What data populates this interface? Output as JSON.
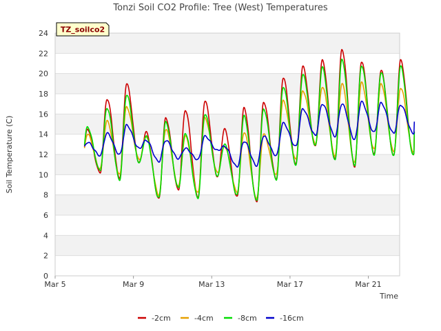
{
  "chart_data": {
    "type": "line",
    "title": "Tonzi Soil CO2 Profile: Tree (West) Temperatures",
    "xlabel": "Time",
    "ylabel": "Soil Temperature (C)",
    "badge": "TZ_soilco2",
    "xlim": [
      0,
      17.6
    ],
    "ylim": [
      0,
      24
    ],
    "yticks": [
      0,
      2,
      4,
      6,
      8,
      10,
      12,
      14,
      16,
      18,
      20,
      22,
      24
    ],
    "xticks": [
      {
        "value": 0,
        "label": "Mar 5"
      },
      {
        "value": 4,
        "label": "Mar 9"
      },
      {
        "value": 8,
        "label": "Mar 13"
      },
      {
        "value": 12,
        "label": "Mar 17"
      },
      {
        "value": 16,
        "label": "Mar 21"
      }
    ],
    "grid": true,
    "legend_position": "bottom",
    "series": [
      {
        "name": "-2cm",
        "color": "#cc0000",
        "daily": [
          {
            "min": 10.0,
            "max": 14.5
          },
          {
            "min": 10.2,
            "max": 17.5
          },
          {
            "min": 9.7,
            "max": 19.0
          },
          {
            "min": 11.2,
            "max": 14.2
          },
          {
            "min": 7.6,
            "max": 15.6
          },
          {
            "min": 8.5,
            "max": 16.4
          },
          {
            "min": 7.8,
            "max": 17.3
          },
          {
            "min": 9.8,
            "max": 14.5
          },
          {
            "min": 7.8,
            "max": 16.6
          },
          {
            "min": 7.3,
            "max": 17.2
          },
          {
            "min": 9.6,
            "max": 19.6
          },
          {
            "min": 11.1,
            "max": 20.7
          },
          {
            "min": 12.8,
            "max": 21.3
          },
          {
            "min": 11.5,
            "max": 22.4
          },
          {
            "min": 10.8,
            "max": 21.2
          },
          {
            "min": 12.1,
            "max": 20.3
          },
          {
            "min": 11.9,
            "max": 21.3
          }
        ],
        "end": 13.9
      },
      {
        "name": "-4cm",
        "color": "#e6a000",
        "daily": [
          {
            "min": 10.4,
            "max": 14.0
          },
          {
            "min": 10.6,
            "max": 15.3
          },
          {
            "min": 10.0,
            "max": 16.7
          },
          {
            "min": 11.5,
            "max": 13.8
          },
          {
            "min": 8.0,
            "max": 14.5
          },
          {
            "min": 8.9,
            "max": 13.8
          },
          {
            "min": 8.2,
            "max": 15.6
          },
          {
            "min": 10.2,
            "max": 12.8
          },
          {
            "min": 8.3,
            "max": 14.2
          },
          {
            "min": 7.7,
            "max": 14.0
          },
          {
            "min": 10.0,
            "max": 17.3
          },
          {
            "min": 11.5,
            "max": 18.3
          },
          {
            "min": 13.1,
            "max": 18.7
          },
          {
            "min": 11.9,
            "max": 19.0
          },
          {
            "min": 11.2,
            "max": 19.1
          },
          {
            "min": 12.5,
            "max": 19.0
          },
          {
            "min": 12.3,
            "max": 18.6
          }
        ],
        "end": 14.3
      },
      {
        "name": "-8cm",
        "color": "#00dd00",
        "daily": [
          {
            "min": 10.3,
            "max": 14.7
          },
          {
            "min": 10.4,
            "max": 16.6
          },
          {
            "min": 9.5,
            "max": 17.9
          },
          {
            "min": 11.2,
            "max": 13.8
          },
          {
            "min": 7.7,
            "max": 15.2
          },
          {
            "min": 8.7,
            "max": 14.1
          },
          {
            "min": 7.7,
            "max": 16.0
          },
          {
            "min": 9.9,
            "max": 13.0
          },
          {
            "min": 8.0,
            "max": 15.8
          },
          {
            "min": 7.4,
            "max": 16.5
          },
          {
            "min": 9.5,
            "max": 18.7
          },
          {
            "min": 11.0,
            "max": 19.9
          },
          {
            "min": 12.9,
            "max": 20.6
          },
          {
            "min": 11.4,
            "max": 21.4
          },
          {
            "min": 10.9,
            "max": 20.8
          },
          {
            "min": 12.0,
            "max": 20.1
          },
          {
            "min": 11.9,
            "max": 20.7
          }
        ],
        "end": 14.2
      },
      {
        "name": "-16cm",
        "color": "#0000cc",
        "daily": [
          {
            "min": 12.0,
            "max": 13.2
          },
          {
            "min": 11.9,
            "max": 14.1
          },
          {
            "min": 12.0,
            "max": 14.9
          },
          {
            "min": 12.6,
            "max": 13.4
          },
          {
            "min": 11.3,
            "max": 13.4
          },
          {
            "min": 11.6,
            "max": 12.6
          },
          {
            "min": 11.5,
            "max": 13.8
          },
          {
            "min": 12.4,
            "max": 12.8
          },
          {
            "min": 10.8,
            "max": 13.3
          },
          {
            "min": 10.9,
            "max": 13.8
          },
          {
            "min": 11.9,
            "max": 15.1
          },
          {
            "min": 12.8,
            "max": 16.5
          },
          {
            "min": 13.9,
            "max": 17.0
          },
          {
            "min": 13.8,
            "max": 17.0
          },
          {
            "min": 13.5,
            "max": 17.2
          },
          {
            "min": 14.2,
            "max": 17.1
          },
          {
            "min": 14.1,
            "max": 16.9
          }
        ],
        "end": 15.3
      }
    ]
  }
}
